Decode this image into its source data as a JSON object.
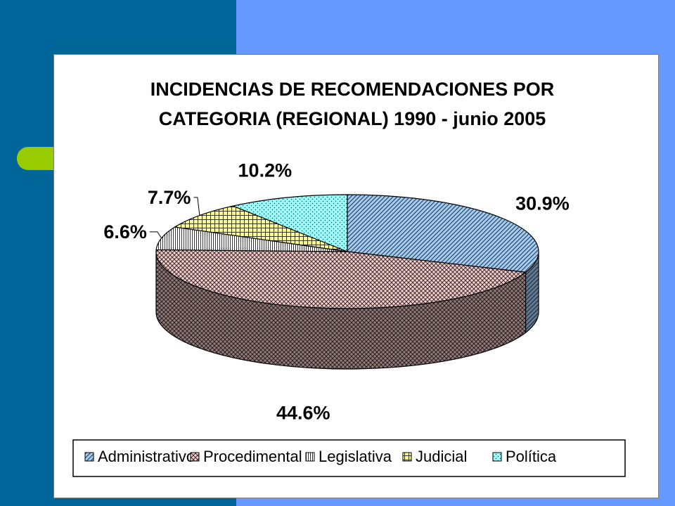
{
  "chart_data": {
    "type": "pie",
    "title": "INCIDENCIAS DE RECOMENDACIONES POR CATEGORIA (REGIONAL) 1990 - junio 2005",
    "title_lines": [
      "INCIDENCIAS DE RECOMENDACIONES POR",
      "CATEGORIA (REGIONAL) 1990 - junio 2005"
    ],
    "slices": [
      {
        "name": "Administrativo",
        "value": 30.9,
        "label": "30.9%",
        "color": "#99ccff",
        "pattern": "diag"
      },
      {
        "name": "Procedimental",
        "value": 44.6,
        "label": "44.6%",
        "color": "#ffcccc",
        "pattern": "cross"
      },
      {
        "name": "Legislativa",
        "value": 6.6,
        "label": "6.6%",
        "color": "#ffffff",
        "pattern": "vert"
      },
      {
        "name": "Judicial",
        "value": 7.7,
        "label": "7.7%",
        "color": "#ffff99",
        "pattern": "grid"
      },
      {
        "name": "Política",
        "value": 10.2,
        "label": "10.2%",
        "color": "#99ffff",
        "pattern": "dots"
      }
    ],
    "legend_position": "bottom",
    "three_d": true
  },
  "colors": {
    "background": "#6699ff",
    "left_band": "#006699",
    "accent_tab": "#99cc00",
    "chart_bg": "#ffffff"
  }
}
